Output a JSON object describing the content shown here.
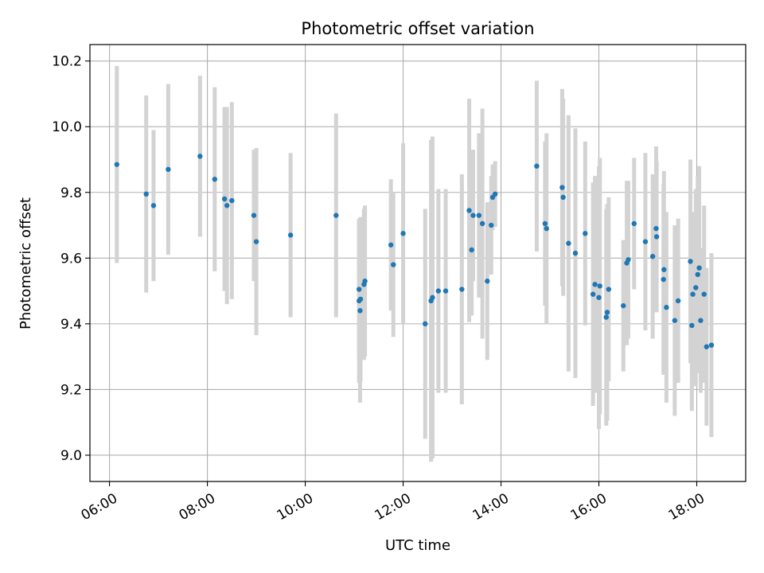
{
  "chart_data": {
    "type": "scatter",
    "title": "Photometric offset variation",
    "xlabel": "UTC time",
    "ylabel": "Photometric offset",
    "x_tick_labels": [
      "06:00",
      "08:00",
      "10:00",
      "12:00",
      "14:00",
      "16:00",
      "18:00"
    ],
    "x_tick_values": [
      6,
      8,
      10,
      12,
      14,
      16,
      18
    ],
    "y_tick_labels": [
      "9.0",
      "9.2",
      "9.4",
      "9.6",
      "9.8",
      "10.0",
      "10.2"
    ],
    "y_tick_values": [
      9.0,
      9.2,
      9.4,
      9.6,
      9.8,
      10.0,
      10.2
    ],
    "xlim": [
      5.6,
      19.0
    ],
    "ylim": [
      8.92,
      10.25
    ],
    "grid": true,
    "point_color": "#1f77b4",
    "errorbar_color": "#d3d3d3",
    "series": [
      {
        "x_hours": [
          6.15,
          6.75,
          6.9,
          7.2,
          7.85,
          8.15,
          8.35,
          8.4,
          8.5,
          8.95,
          9.0,
          9.7,
          10.63,
          11.1,
          11.1,
          11.12,
          11.13,
          11.2,
          11.22,
          11.75,
          11.8,
          12.0,
          12.45,
          12.57,
          12.6,
          12.72,
          12.87,
          13.2,
          13.35,
          13.4,
          13.43,
          13.55,
          13.62,
          13.72,
          13.8,
          13.83,
          13.88,
          14.73,
          14.9,
          14.93,
          15.25,
          15.27,
          15.38,
          15.52,
          15.72,
          15.88,
          15.92,
          16.0,
          16.02,
          16.15,
          16.17,
          16.2,
          16.5,
          16.57,
          16.6,
          16.72,
          16.95,
          17.1,
          17.17,
          17.18,
          17.32,
          17.33,
          17.38,
          17.55,
          17.62,
          17.87,
          17.9,
          17.92,
          17.98,
          18.02,
          18.05,
          18.08,
          18.15,
          18.2,
          18.3
        ],
        "y": [
          9.885,
          9.795,
          9.76,
          9.87,
          9.91,
          9.84,
          9.78,
          9.76,
          9.775,
          9.73,
          9.65,
          9.67,
          9.73,
          9.505,
          9.47,
          9.44,
          9.475,
          9.52,
          9.53,
          9.64,
          9.58,
          9.675,
          9.4,
          9.47,
          9.48,
          9.5,
          9.5,
          9.505,
          9.745,
          9.625,
          9.73,
          9.73,
          9.705,
          9.53,
          9.7,
          9.785,
          9.795,
          9.88,
          9.705,
          9.69,
          9.815,
          9.785,
          9.645,
          9.615,
          9.675,
          9.49,
          9.52,
          9.48,
          9.515,
          9.42,
          9.435,
          9.505,
          9.455,
          9.585,
          9.595,
          9.705,
          9.65,
          9.605,
          9.69,
          9.665,
          9.535,
          9.565,
          9.45,
          9.41,
          9.47,
          9.59,
          9.395,
          9.49,
          9.51,
          9.55,
          9.57,
          9.41,
          9.49,
          9.33,
          9.335
        ],
        "yerr": [
          0.3,
          0.3,
          0.23,
          0.26,
          0.245,
          0.28,
          0.28,
          0.3,
          0.3,
          0.2,
          0.285,
          0.25,
          0.31,
          0.21,
          0.25,
          0.28,
          0.25,
          0.23,
          0.23,
          0.2,
          0.22,
          0.275,
          0.35,
          0.49,
          0.49,
          0.31,
          0.31,
          0.35,
          0.34,
          0.2,
          0.2,
          0.25,
          0.35,
          0.24,
          0.15,
          0.1,
          0.1,
          0.26,
          0.25,
          0.29,
          0.3,
          0.3,
          0.39,
          0.38,
          0.28,
          0.34,
          0.33,
          0.4,
          0.39,
          0.33,
          0.33,
          0.28,
          0.2,
          0.25,
          0.24,
          0.2,
          0.27,
          0.25,
          0.25,
          0.23,
          0.29,
          0.3,
          0.29,
          0.29,
          0.25,
          0.31,
          0.26,
          0.25,
          0.3,
          0.3,
          0.31,
          0.22,
          0.27,
          0.24,
          0.28
        ]
      }
    ]
  }
}
